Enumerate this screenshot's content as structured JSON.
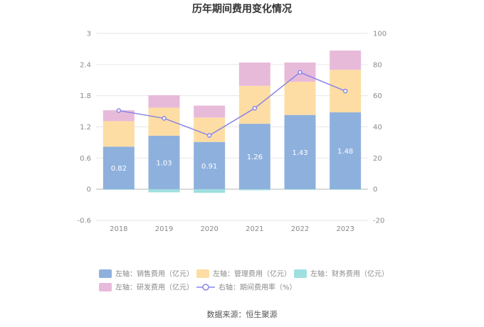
{
  "chart_data": {
    "type": "bar",
    "title": "历年期间费用变化情况",
    "categories": [
      "2018",
      "2019",
      "2020",
      "2021",
      "2022",
      "2023"
    ],
    "left_axis": {
      "min": -0.6,
      "max": 3,
      "ticks": [
        "3",
        "2.4",
        "1.8",
        "1.2",
        "0.6",
        "0",
        "-0.6"
      ]
    },
    "right_axis": {
      "min": -20,
      "max": 100,
      "ticks": [
        "100",
        "80",
        "60",
        "40",
        "20",
        "0",
        "-20"
      ]
    },
    "series": [
      {
        "name": "左轴：销售费用（亿元）",
        "kind": "bar",
        "axis": "left",
        "color": "#8eb0dd",
        "values": [
          0.82,
          1.03,
          0.91,
          1.26,
          1.43,
          1.48
        ],
        "labels": [
          "0.82",
          "1.03",
          "0.91",
          "1.26",
          "1.43",
          "1.48"
        ]
      },
      {
        "name": "左轴：管理费用（亿元）",
        "kind": "bar",
        "axis": "left",
        "color": "#fddda3",
        "values": [
          0.49,
          0.54,
          0.47,
          0.73,
          0.64,
          0.82
        ]
      },
      {
        "name": "左轴：财务费用（亿元）",
        "kind": "bar",
        "axis": "left",
        "color": "#9fdfe0",
        "values": [
          -0.01,
          -0.06,
          -0.07,
          -0.02,
          -0.01,
          -0.01
        ]
      },
      {
        "name": "左轴：研发费用（亿元）",
        "kind": "bar",
        "axis": "left",
        "color": "#e8bada",
        "values": [
          0.21,
          0.24,
          0.23,
          0.45,
          0.37,
          0.37
        ]
      },
      {
        "name": "右轴：期间费用率（%）",
        "kind": "line",
        "axis": "right",
        "color": "#8a86e8",
        "values": [
          50.5,
          45.5,
          34.5,
          52,
          75,
          63
        ]
      }
    ],
    "grid": true,
    "legend_position": "bottom"
  },
  "source": "数据来源：恒生聚源"
}
